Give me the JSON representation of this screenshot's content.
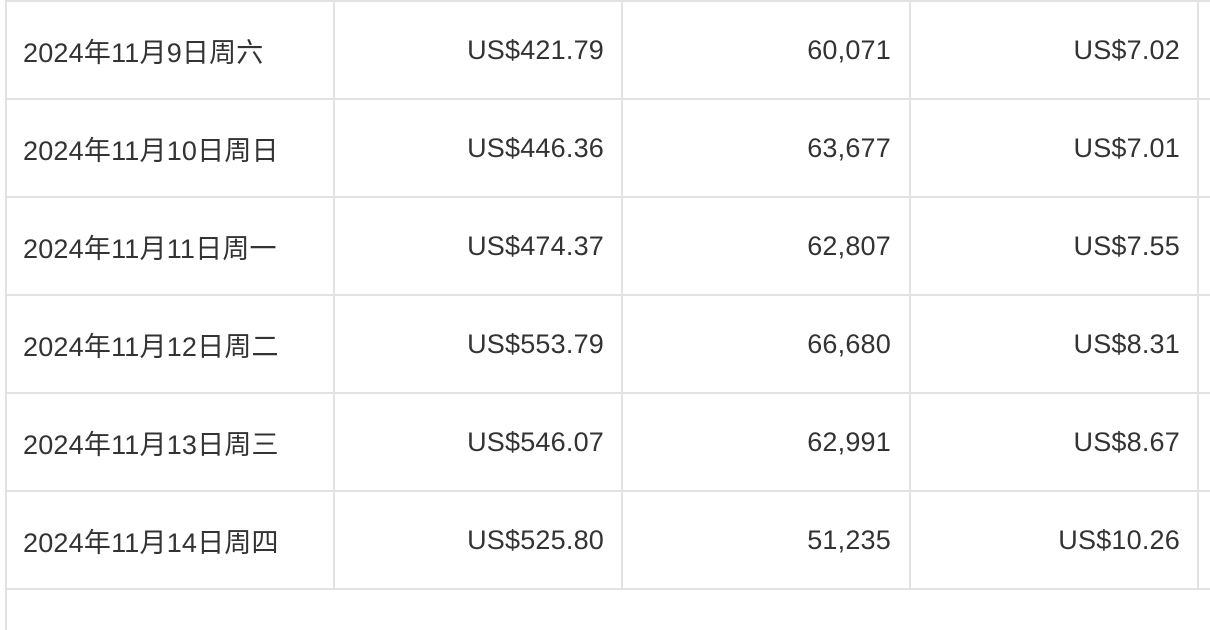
{
  "table": {
    "rows": [
      {
        "date": "2024年11月9日周六",
        "revenue": "US$421.79",
        "views": "60,071",
        "rpm": "US$7.02"
      },
      {
        "date": "2024年11月10日周日",
        "revenue": "US$446.36",
        "views": "63,677",
        "rpm": "US$7.01"
      },
      {
        "date": "2024年11月11日周一",
        "revenue": "US$474.37",
        "views": "62,807",
        "rpm": "US$7.55"
      },
      {
        "date": "2024年11月12日周二",
        "revenue": "US$553.79",
        "views": "66,680",
        "rpm": "US$8.31"
      },
      {
        "date": "2024年11月13日周三",
        "revenue": "US$546.07",
        "views": "62,991",
        "rpm": "US$8.67"
      },
      {
        "date": "2024年11月14日周四",
        "revenue": "US$525.80",
        "views": "51,235",
        "rpm": "US$10.26"
      }
    ]
  }
}
